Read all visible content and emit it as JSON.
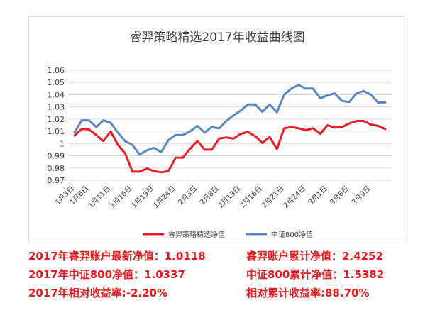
{
  "chart_data": {
    "type": "line",
    "title": "睿羿策略精选2017年收益曲线图",
    "xlabel": "",
    "ylabel": "",
    "ylim": [
      0.97,
      1.06
    ],
    "yticks": [
      "0.97",
      "0.98",
      "0.99",
      "1",
      "1.01",
      "1.02",
      "1.03",
      "1.04",
      "1.05",
      "1.06"
    ],
    "x_tick_labels": [
      "1月3日",
      "1月6日",
      "1月11日",
      "1月16日",
      "1月19日",
      "1月24日",
      "2月3日",
      "2月8日",
      "2月13日",
      "2月16日",
      "2月21日",
      "2月24日",
      "3月1日",
      "3月6日",
      "3月9日"
    ],
    "x_tick_positions": [
      0,
      2,
      5,
      8,
      11,
      14,
      17,
      20,
      23,
      26,
      29,
      32,
      35,
      38,
      41
    ],
    "grid": "horizontal",
    "legend": "bottom",
    "series": [
      {
        "name": "睿羿策略精选净值",
        "color": "#ee1c25",
        "values": [
          1.0065,
          1.012,
          1.0115,
          1.007,
          1.002,
          1.01,
          0.999,
          0.992,
          0.977,
          0.977,
          0.9795,
          0.9775,
          0.9765,
          0.9775,
          0.9885,
          0.9885,
          0.996,
          1.002,
          0.995,
          0.995,
          1.004,
          1.005,
          1.004,
          1.008,
          1.0095,
          1.006,
          1.0005,
          1.0055,
          0.9955,
          1.0125,
          1.0135,
          1.0125,
          1.011,
          1.0125,
          1.008,
          1.015,
          1.013,
          1.0135,
          1.0165,
          1.0185,
          1.0185,
          1.0155,
          1.0145,
          1.0118
        ]
      },
      {
        "name": "中证800净值",
        "color": "#5b86c4",
        "values": [
          1.009,
          1.019,
          1.019,
          1.0135,
          1.019,
          1.017,
          1.009,
          1.002,
          0.999,
          0.991,
          0.9945,
          0.9965,
          0.993,
          1.003,
          1.007,
          1.007,
          1.01,
          1.0145,
          1.009,
          1.0135,
          1.0125,
          1.0185,
          1.023,
          1.027,
          1.032,
          1.032,
          1.026,
          1.032,
          1.0255,
          1.04,
          1.045,
          1.048,
          1.045,
          1.045,
          1.037,
          1.0395,
          1.041,
          1.035,
          1.034,
          1.041,
          1.043,
          1.04,
          1.0335,
          1.0337
        ]
      }
    ]
  },
  "summary": {
    "row1_left": "2017年睿羿账户最新净值：1.0118",
    "row1_right": "睿羿账户累计净值：2.4252",
    "row2_left": "2017年中证800净值：1.0337",
    "row2_right": "中证800累计净值：1.5382",
    "row3_left": "2017年相对收益率:-2.20%",
    "row3_right": "相对累计收益率:88.70%"
  }
}
